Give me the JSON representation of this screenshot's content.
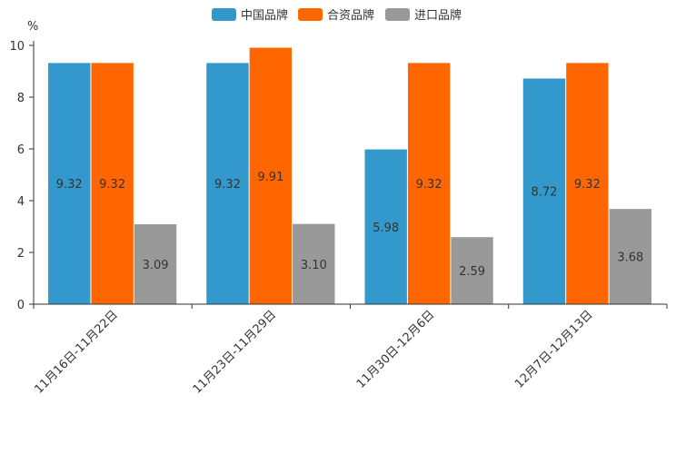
{
  "chart_data": {
    "type": "bar",
    "title": "",
    "xlabel": "",
    "ylabel": "",
    "unit_label": "%",
    "ylim": [
      0,
      10
    ],
    "yticks": [
      "0",
      "2",
      "4",
      "6",
      "8",
      "10"
    ],
    "categories": [
      "11月16日-11月22日",
      "11月23日-11月29日",
      "11月30日-12月6日",
      "12月7日-12月13日"
    ],
    "series": [
      {
        "name": "中国品牌",
        "color": "#3399cc",
        "values": [
          9.32,
          9.32,
          5.98,
          8.72
        ],
        "labels": [
          "9.32",
          "9.32",
          "5.98",
          "8.72"
        ]
      },
      {
        "name": "合资品牌",
        "color": "#ff6600",
        "values": [
          9.32,
          9.91,
          9.32,
          9.32
        ],
        "labels": [
          "9.32",
          "9.91",
          "9.32",
          "9.32"
        ]
      },
      {
        "name": "进口品牌",
        "color": "#999999",
        "values": [
          3.09,
          3.1,
          2.59,
          3.68
        ],
        "labels": [
          "3.09",
          "3.10",
          "2.59",
          "3.68"
        ]
      }
    ],
    "legend_position": "top-center",
    "grid": false
  }
}
